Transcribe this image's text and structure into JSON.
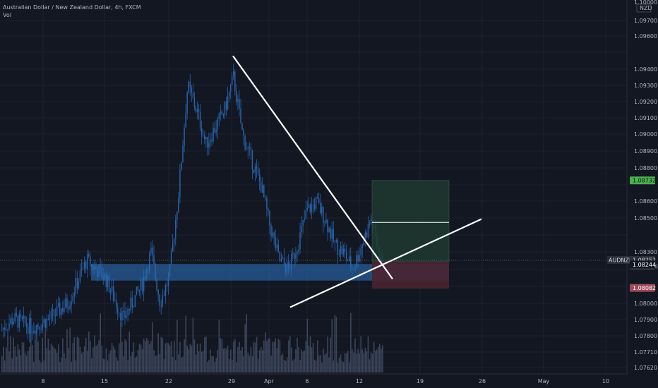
{
  "header": {
    "title": "Australian Dollar / New Zealand Dollar, 4h, FXCM",
    "volume_label": "Vol"
  },
  "price_axis": {
    "currency": "NZD",
    "ticks": [
      "1.10000",
      "1.09700",
      "1.09600",
      "1.09400",
      "1.09300",
      "1.09200",
      "1.09100",
      "1.09000",
      "1.08900",
      "1.08800",
      "1.08600",
      "1.08500",
      "1.08300",
      "1.08000",
      "1.07900",
      "1.07800",
      "1.07710",
      "1.07620"
    ]
  },
  "time_axis": {
    "labels": [
      "8",
      "15",
      "22",
      "29",
      "Apr",
      "6",
      "12",
      "19",
      "26",
      "May",
      "10"
    ]
  },
  "price_tags": {
    "target": "1.08732",
    "symbol": "AUDNZD",
    "last": "1.08252",
    "countdown": "03:18:26",
    "entry": "1.08244",
    "stop": "1.08082"
  },
  "colors": {
    "background": "#131722",
    "candle": "#2962a8",
    "volume": "#5c6b86",
    "zone": "#2a6bb0",
    "profit_box": "#1e3a2f",
    "loss_box": "#4a2430",
    "target_tag": "#4caf50",
    "stop_tag": "#a04a58",
    "lines": "#ffffff"
  },
  "chart_data": {
    "type": "candlestick",
    "instrument": "AUDNZD",
    "timeframe": "4h",
    "ylim": [
      1.0755,
      1.1
    ],
    "close_path": [
      {
        "x": "Mar 3",
        "y": 1.078
      },
      {
        "x": "Mar 5",
        "y": 1.079
      },
      {
        "x": "Mar 7",
        "y": 1.0785
      },
      {
        "x": "Mar 9",
        "y": 1.079
      },
      {
        "x": "Mar 11",
        "y": 1.08
      },
      {
        "x": "Mar 13",
        "y": 1.0825
      },
      {
        "x": "Mar 15",
        "y": 1.0815
      },
      {
        "x": "Mar 17",
        "y": 1.079
      },
      {
        "x": "Mar 19",
        "y": 1.081
      },
      {
        "x": "Mar 20",
        "y": 1.083
      },
      {
        "x": "Mar 21",
        "y": 1.08
      },
      {
        "x": "Mar 22",
        "y": 1.0815
      },
      {
        "x": "Mar 23",
        "y": 1.0865
      },
      {
        "x": "Mar 24",
        "y": 1.093
      },
      {
        "x": "Mar 25",
        "y": 1.0915
      },
      {
        "x": "Mar 26",
        "y": 1.0895
      },
      {
        "x": "Mar 27",
        "y": 1.0905
      },
      {
        "x": "Mar 28",
        "y": 1.0915
      },
      {
        "x": "Mar 29",
        "y": 1.0935
      },
      {
        "x": "Mar 30",
        "y": 1.09
      },
      {
        "x": "Mar 31",
        "y": 1.0885
      },
      {
        "x": "Apr 1",
        "y": 1.087
      },
      {
        "x": "Apr 2",
        "y": 1.0845
      },
      {
        "x": "Apr 3",
        "y": 1.0825
      },
      {
        "x": "Apr 4",
        "y": 1.082
      },
      {
        "x": "Apr 5",
        "y": 1.0835
      },
      {
        "x": "Apr 6",
        "y": 1.0855
      },
      {
        "x": "Apr 7",
        "y": 1.086
      },
      {
        "x": "Apr 8",
        "y": 1.085
      },
      {
        "x": "Apr 9",
        "y": 1.0835
      },
      {
        "x": "Apr 10",
        "y": 1.083
      },
      {
        "x": "Apr 11",
        "y": 1.082
      },
      {
        "x": "Apr 12",
        "y": 1.0835
      },
      {
        "x": "Apr 13",
        "y": 1.085
      },
      {
        "x": "Apr 14",
        "y": 1.0825
      }
    ],
    "support_zone": {
      "y_low": 1.0813,
      "y_high": 1.0823,
      "x_start": "Mar 13",
      "x_end": "Apr 17"
    },
    "downtrend_line": [
      {
        "x": "Mar 29",
        "y": 1.0948
      },
      {
        "x": "Apr 15",
        "y": 1.0814
      }
    ],
    "uptrend_line": [
      {
        "x": "Apr 4",
        "y": 1.0797
      },
      {
        "x": "Apr 21",
        "y": 1.085
      }
    ],
    "long_position": {
      "entry": 1.08244,
      "target": 1.08732,
      "stop": 1.08082,
      "x_start": "Apr 13",
      "x_end": "Apr 22",
      "marker": 1.0848
    }
  }
}
